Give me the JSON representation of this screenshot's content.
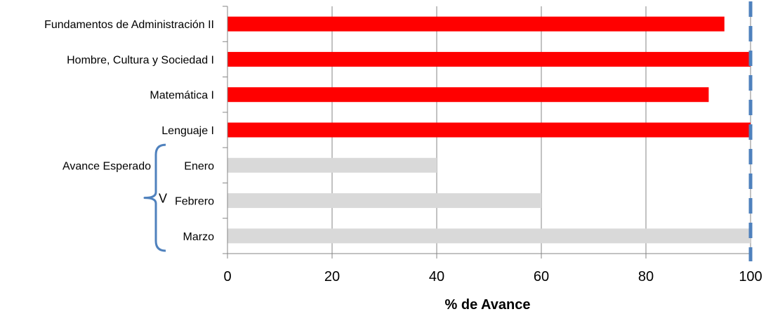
{
  "chart_data": {
    "type": "bar",
    "orientation": "horizontal",
    "categories": [
      "Fundamentos de Administración II",
      "Hombre, Cultura y Sociedad I",
      "Matemática I",
      "Lenguaje I",
      "Enero",
      "Febrero",
      "Marzo"
    ],
    "values": [
      95,
      100,
      92,
      100,
      40,
      60,
      100
    ],
    "bar_colors": [
      "#ff0000",
      "#ff0000",
      "#ff0000",
      "#ff0000",
      "#d9d9d9",
      "#d9d9d9",
      "#d9d9d9"
    ],
    "xlabel": "% de Avance",
    "ylabel": "",
    "xlim": [
      0,
      100
    ],
    "xticks": [
      0,
      20,
      40,
      60,
      80,
      100
    ],
    "grid": "vertical",
    "reference_line": {
      "x": 100,
      "style": "dashed",
      "color": "#4f81bd"
    },
    "group_annotation": {
      "label": "Avance Esperado",
      "members": [
        "Enero",
        "Febrero",
        "Marzo"
      ],
      "marker": "V"
    }
  }
}
